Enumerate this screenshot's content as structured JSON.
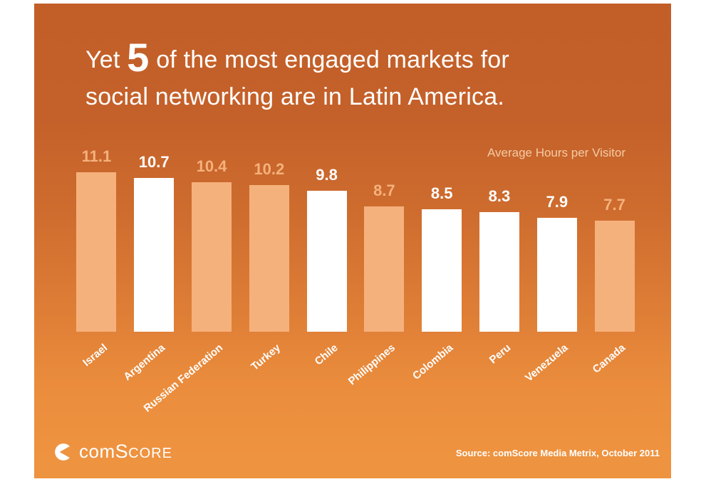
{
  "palette": {
    "bg_top": "#C25E28",
    "bg_bottom": "#EE9340",
    "bar_peach": "#F5B17C",
    "bar_white": "#FFFFFF",
    "legend_color": "#F5CBA3",
    "text_white": "#FFFFFF"
  },
  "title": {
    "prefix": "Yet",
    "number": "5",
    "line1_rest": "of the most engaged markets for",
    "line2": "social networking are in Latin America."
  },
  "legend": {
    "label": "Average Hours per Visitor"
  },
  "footer": {
    "brand": {
      "part1": "com",
      "part2": "S",
      "part3": "CORE"
    },
    "source": "Source: comScore Media Metrix, October 2011"
  },
  "chart_data": {
    "type": "bar",
    "title": "Yet 5 of the most engaged markets for social networking are in Latin America.",
    "ylabel": "Average Hours per Visitor",
    "categories": [
      "Israel",
      "Argentina",
      "Russian Federation",
      "Turkey",
      "Chile",
      "Philippines",
      "Colombia",
      "Peru",
      "Venezuela",
      "Canada"
    ],
    "values": [
      11.1,
      10.7,
      10.4,
      10.2,
      9.8,
      8.7,
      8.5,
      8.3,
      7.9,
      7.7
    ],
    "bar_styles": [
      "peach",
      "white",
      "peach",
      "peach",
      "white",
      "peach",
      "white",
      "white",
      "white",
      "peach"
    ],
    "bar_colors": [
      "#F5B17C",
      "#FFFFFF",
      "#F5B17C",
      "#F5B17C",
      "#FFFFFF",
      "#F5B17C",
      "#FFFFFF",
      "#FFFFFF",
      "#FFFFFF",
      "#F5B17C"
    ],
    "white_bar_categories": [
      "Argentina",
      "Chile",
      "Colombia",
      "Peru",
      "Venezuela"
    ],
    "ylim": [
      0,
      12
    ],
    "grid": false,
    "legend_position": "top-right",
    "value_labels": "above bars",
    "category_label_rotation_deg": -40,
    "source": "Source: comScore Media Metrix, October 2011"
  }
}
